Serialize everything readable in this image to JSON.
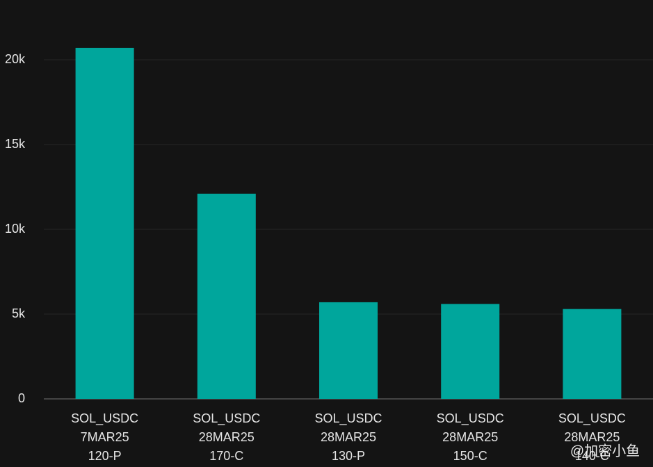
{
  "chart_data": {
    "type": "bar",
    "categories": [
      [
        "SOL_USDC",
        "7MAR25",
        "120-P"
      ],
      [
        "SOL_USDC",
        "28MAR25",
        "170-C"
      ],
      [
        "SOL_USDC",
        "28MAR25",
        "130-P"
      ],
      [
        "SOL_USDC",
        "28MAR25",
        "150-C"
      ],
      [
        "SOL_USDC",
        "28MAR25",
        "140-C"
      ]
    ],
    "values": [
      20700,
      12100,
      5700,
      5600,
      5300
    ],
    "color": "#00a69c",
    "ylim": [
      0,
      23500
    ],
    "yticks": [
      0,
      {
        "value": 5000,
        "label": "5k"
      },
      {
        "value": 10000,
        "label": "10k"
      },
      {
        "value": 15000,
        "label": "15k"
      },
      {
        "value": 20000,
        "label": "20k"
      }
    ],
    "grid": true,
    "watermark": "@加密小鱼"
  }
}
